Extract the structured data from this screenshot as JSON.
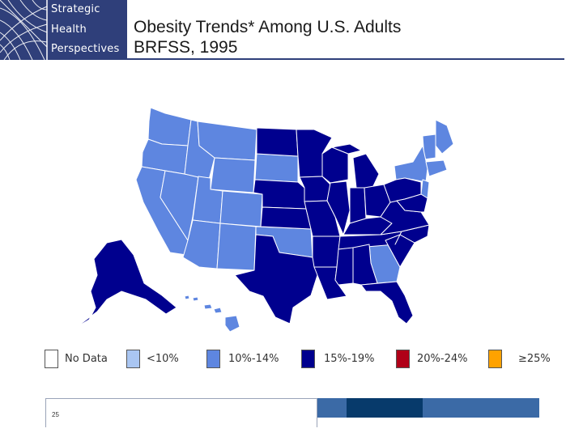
{
  "logo": {
    "words": [
      "Strategic",
      "Health",
      "Perspectives"
    ]
  },
  "title": {
    "line1": "Obesity Trends* Among U.S. Adults",
    "line2": "BRFSS, 1995"
  },
  "legend": {
    "items": [
      {
        "label": "No Data",
        "color": "#ffffff"
      },
      {
        "label": "<10%",
        "color": "#aac6f2"
      },
      {
        "label": "10%-14%",
        "color": "#5e86e0"
      },
      {
        "label": "15%-19%",
        "color": "#00008e"
      },
      {
        "label": "20%-24%",
        "color": "#b00018"
      },
      {
        "label": "≥25%",
        "color": "#ffa200"
      }
    ]
  },
  "colors": {
    "brand_navy": "#2f3f7a",
    "bar_mid": "#3b6aa6",
    "bar_dark": "#073a6b"
  },
  "map": {
    "category_15_19": "15%-19%",
    "category_10_14": "10%-14%"
  },
  "footer": {
    "page_number": "25"
  }
}
